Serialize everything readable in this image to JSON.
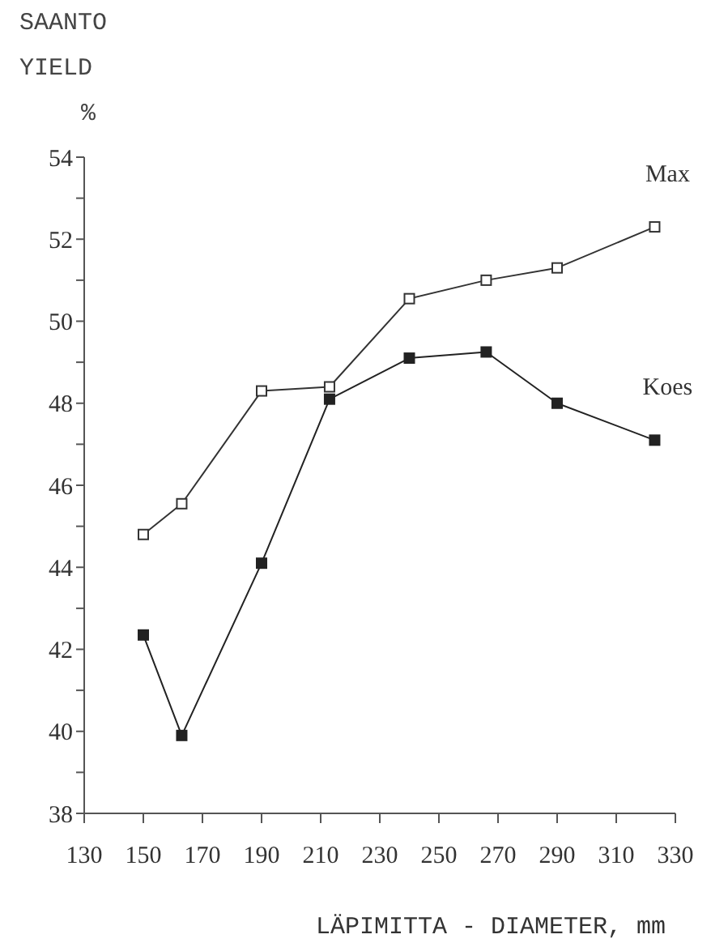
{
  "chart_data": {
    "type": "line",
    "ylabel": "SAANTO\nYIELD\n%",
    "xlabel": "LÄPIMITTA - DIAMETER, mm",
    "x": [
      150,
      163,
      190,
      213,
      240,
      266,
      290,
      323
    ],
    "series": [
      {
        "name": "Max",
        "color": "#333333",
        "values": [
          44.8,
          45.55,
          48.3,
          48.4,
          50.55,
          51.0,
          51.3,
          52.3
        ]
      },
      {
        "name": "Koes",
        "color": "#222222",
        "values": [
          42.35,
          39.9,
          44.1,
          48.1,
          49.1,
          49.25,
          48.0,
          47.1
        ]
      }
    ],
    "xlim": [
      130,
      330
    ],
    "xticks": [
      130,
      150,
      170,
      190,
      210,
      230,
      250,
      270,
      290,
      310,
      330
    ],
    "ylim": [
      38,
      54
    ],
    "yticks": [
      38,
      {
        "value": 39,
        "label": null
      },
      40,
      {
        "value": 41,
        "label": null
      },
      42,
      {
        "value": 43,
        "label": null
      },
      44,
      {
        "value": 45,
        "label": null
      },
      46,
      {
        "value": 47,
        "label": null
      },
      48,
      {
        "value": 49,
        "label": null
      },
      50,
      {
        "value": 51,
        "label": null
      },
      52,
      {
        "value": 53,
        "label": null
      },
      54
    ],
    "grid": false,
    "legend": false,
    "marker": "square",
    "line_style": "solid"
  }
}
